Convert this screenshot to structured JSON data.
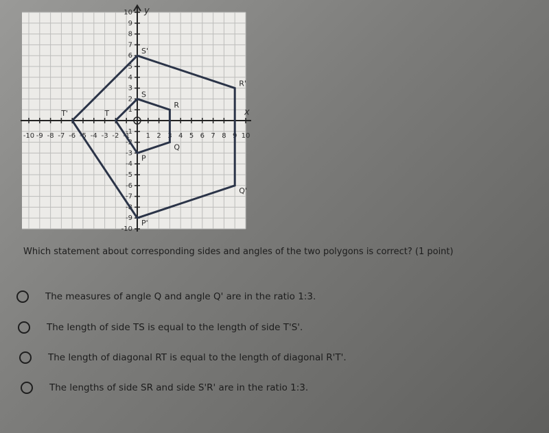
{
  "graph": {
    "xlim": [
      -10,
      10
    ],
    "ylim": [
      -10,
      10
    ],
    "xticks": [
      -10,
      -9,
      -8,
      -7,
      -6,
      -5,
      -4,
      -3,
      -2,
      -1,
      1,
      2,
      3,
      4,
      5,
      6,
      7,
      8,
      9,
      10
    ],
    "yticks": [
      -10,
      -9,
      -8,
      -7,
      -6,
      -5,
      -4,
      -3,
      -2,
      -1,
      1,
      2,
      3,
      4,
      5,
      6,
      7,
      8,
      9,
      10
    ],
    "x_label": "x",
    "y_label": "y",
    "polygons": [
      {
        "vertices": [
          {
            "label": "P",
            "x": 0,
            "y": -3
          },
          {
            "label": "Q",
            "x": 3,
            "y": -2
          },
          {
            "label": "R",
            "x": 3,
            "y": 1
          },
          {
            "label": "S",
            "x": 0,
            "y": 2
          },
          {
            "label": "T",
            "x": -2,
            "y": 0
          }
        ]
      },
      {
        "vertices": [
          {
            "label": "P'",
            "x": 0,
            "y": -9
          },
          {
            "label": "Q'",
            "x": 9,
            "y": -6
          },
          {
            "label": "R'",
            "x": 9,
            "y": 3
          },
          {
            "label": "S'",
            "x": 0,
            "y": 6
          },
          {
            "label": "T'",
            "x": -6,
            "y": 0
          }
        ]
      }
    ]
  },
  "question": "Which statement about corresponding sides and angles of the two polygons is correct? (1 point)",
  "options": [
    "The measures of angle Q and angle Q' are in the ratio 1:3.",
    "The length of side TS is equal to the length of side T'S'.",
    "The length of diagonal RT is equal to the length of diagonal R'T'.",
    "The lengths of side SR and side S'R' are in the ratio 1:3."
  ]
}
